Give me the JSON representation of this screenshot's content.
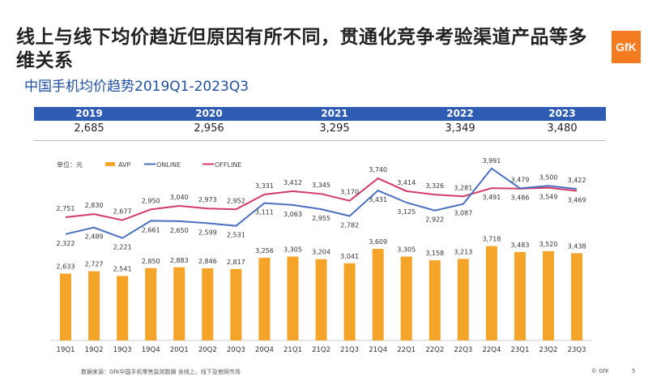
{
  "title": "线上与线下均价趋近但原因有所不同，贯通化竞争考验渠道产品等多维关系",
  "subtitle": "中国手机均价趋势2019Q1-2023Q3",
  "logo": "GfK",
  "years": [
    {
      "label": "2019",
      "value": "2,685"
    },
    {
      "label": "2020",
      "value": "2,956"
    },
    {
      "label": "2021",
      "value": "3,295"
    },
    {
      "label": "2022",
      "value": "3,349"
    },
    {
      "label": "2023",
      "value": "3,480"
    }
  ],
  "colors": {
    "avp": "#f5a42a",
    "online": "#4a6fbf",
    "offline": "#d23b6a",
    "band": "#2f5cb3"
  },
  "chart_data": {
    "type": "bar+line",
    "unit_label": "单位：元",
    "legend_position": "top-left",
    "categories": [
      "19Q1",
      "19Q2",
      "19Q3",
      "19Q4",
      "20Q1",
      "20Q2",
      "20Q3",
      "20Q4",
      "21Q1",
      "21Q2",
      "21Q3",
      "21Q4",
      "22Q1",
      "22Q2",
      "22Q3",
      "22Q4",
      "23Q1",
      "23Q2",
      "23Q3"
    ],
    "series": [
      {
        "name": "AVP",
        "type": "bar",
        "values": [
          2633,
          2727,
          2541,
          2850,
          2883,
          2846,
          2817,
          3256,
          3305,
          3204,
          3041,
          3609,
          3305,
          3158,
          3213,
          3718,
          3483,
          3520,
          3438
        ]
      },
      {
        "name": "ONLINE",
        "type": "line",
        "values": [
          2322,
          2489,
          2221,
          2661,
          2650,
          2599,
          2531,
          3111,
          3063,
          2955,
          2782,
          3431,
          3125,
          2922,
          3087,
          3991,
          3486,
          3549,
          3469
        ]
      },
      {
        "name": "OFFLINE",
        "type": "line",
        "values": [
          2751,
          2830,
          2677,
          2950,
          3040,
          2973,
          2952,
          3331,
          3412,
          3345,
          3170,
          3740,
          3414,
          3326,
          3281,
          3491,
          3479,
          3500,
          3422
        ]
      }
    ]
  },
  "footer": "数据来源：GfK中国手机零售监测数据 含线上、线下及官网市场",
  "copyright": "© GfK",
  "page_number": "5"
}
